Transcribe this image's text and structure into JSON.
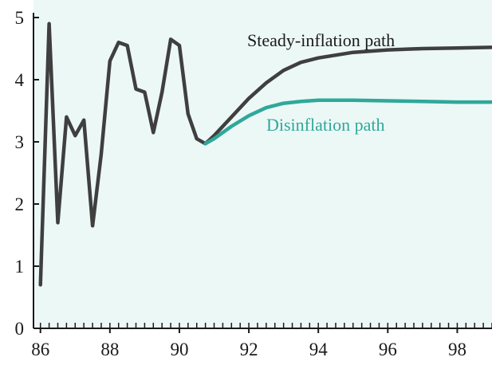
{
  "colors": {
    "background": "#ffffff",
    "panel": "#ecf8f6",
    "axis": "#1a1a1a",
    "steady": "#3f3f3f",
    "disinflation": "#2fa89a"
  },
  "chart_data": {
    "type": "line",
    "title": "",
    "xlabel": "",
    "ylabel": "",
    "xlim": [
      1985.8,
      1999.0
    ],
    "ylim": [
      0,
      5
    ],
    "x_ticks": [
      86,
      88,
      90,
      92,
      94,
      96,
      98
    ],
    "x_tick_values": [
      1986,
      1988,
      1990,
      1992,
      1994,
      1996,
      1998
    ],
    "y_ticks": [
      0,
      1,
      2,
      3,
      4,
      5
    ],
    "grid": false,
    "minor_ticks_per_year": 4,
    "series": [
      {
        "name": "Steady-inflation path",
        "color": "#3f3f3f",
        "x": [
          1986.0,
          1986.25,
          1986.5,
          1986.75,
          1987.0,
          1987.25,
          1987.5,
          1987.75,
          1988.0,
          1988.25,
          1988.5,
          1988.75,
          1989.0,
          1989.25,
          1989.5,
          1989.75,
          1990.0,
          1990.25,
          1990.5,
          1990.75,
          1991.0,
          1991.5,
          1992.0,
          1992.5,
          1993.0,
          1993.5,
          1994.0,
          1995.0,
          1996.0,
          1997.0,
          1998.0,
          1999.0
        ],
        "y": [
          0.7,
          4.9,
          1.7,
          3.4,
          3.1,
          3.35,
          1.65,
          2.8,
          4.3,
          4.6,
          4.55,
          3.85,
          3.8,
          3.15,
          3.8,
          4.65,
          4.55,
          3.45,
          3.05,
          2.97,
          3.1,
          3.4,
          3.7,
          3.95,
          4.15,
          4.28,
          4.35,
          4.44,
          4.48,
          4.5,
          4.51,
          4.52
        ]
      },
      {
        "name": "Disinflation path",
        "color": "#2fa89a",
        "x": [
          1990.75,
          1991.0,
          1991.5,
          1992.0,
          1992.5,
          1993.0,
          1993.5,
          1994.0,
          1995.0,
          1996.0,
          1997.0,
          1998.0,
          1999.0
        ],
        "y": [
          2.97,
          3.05,
          3.25,
          3.42,
          3.55,
          3.62,
          3.65,
          3.67,
          3.67,
          3.66,
          3.65,
          3.64,
          3.64
        ]
      }
    ]
  }
}
